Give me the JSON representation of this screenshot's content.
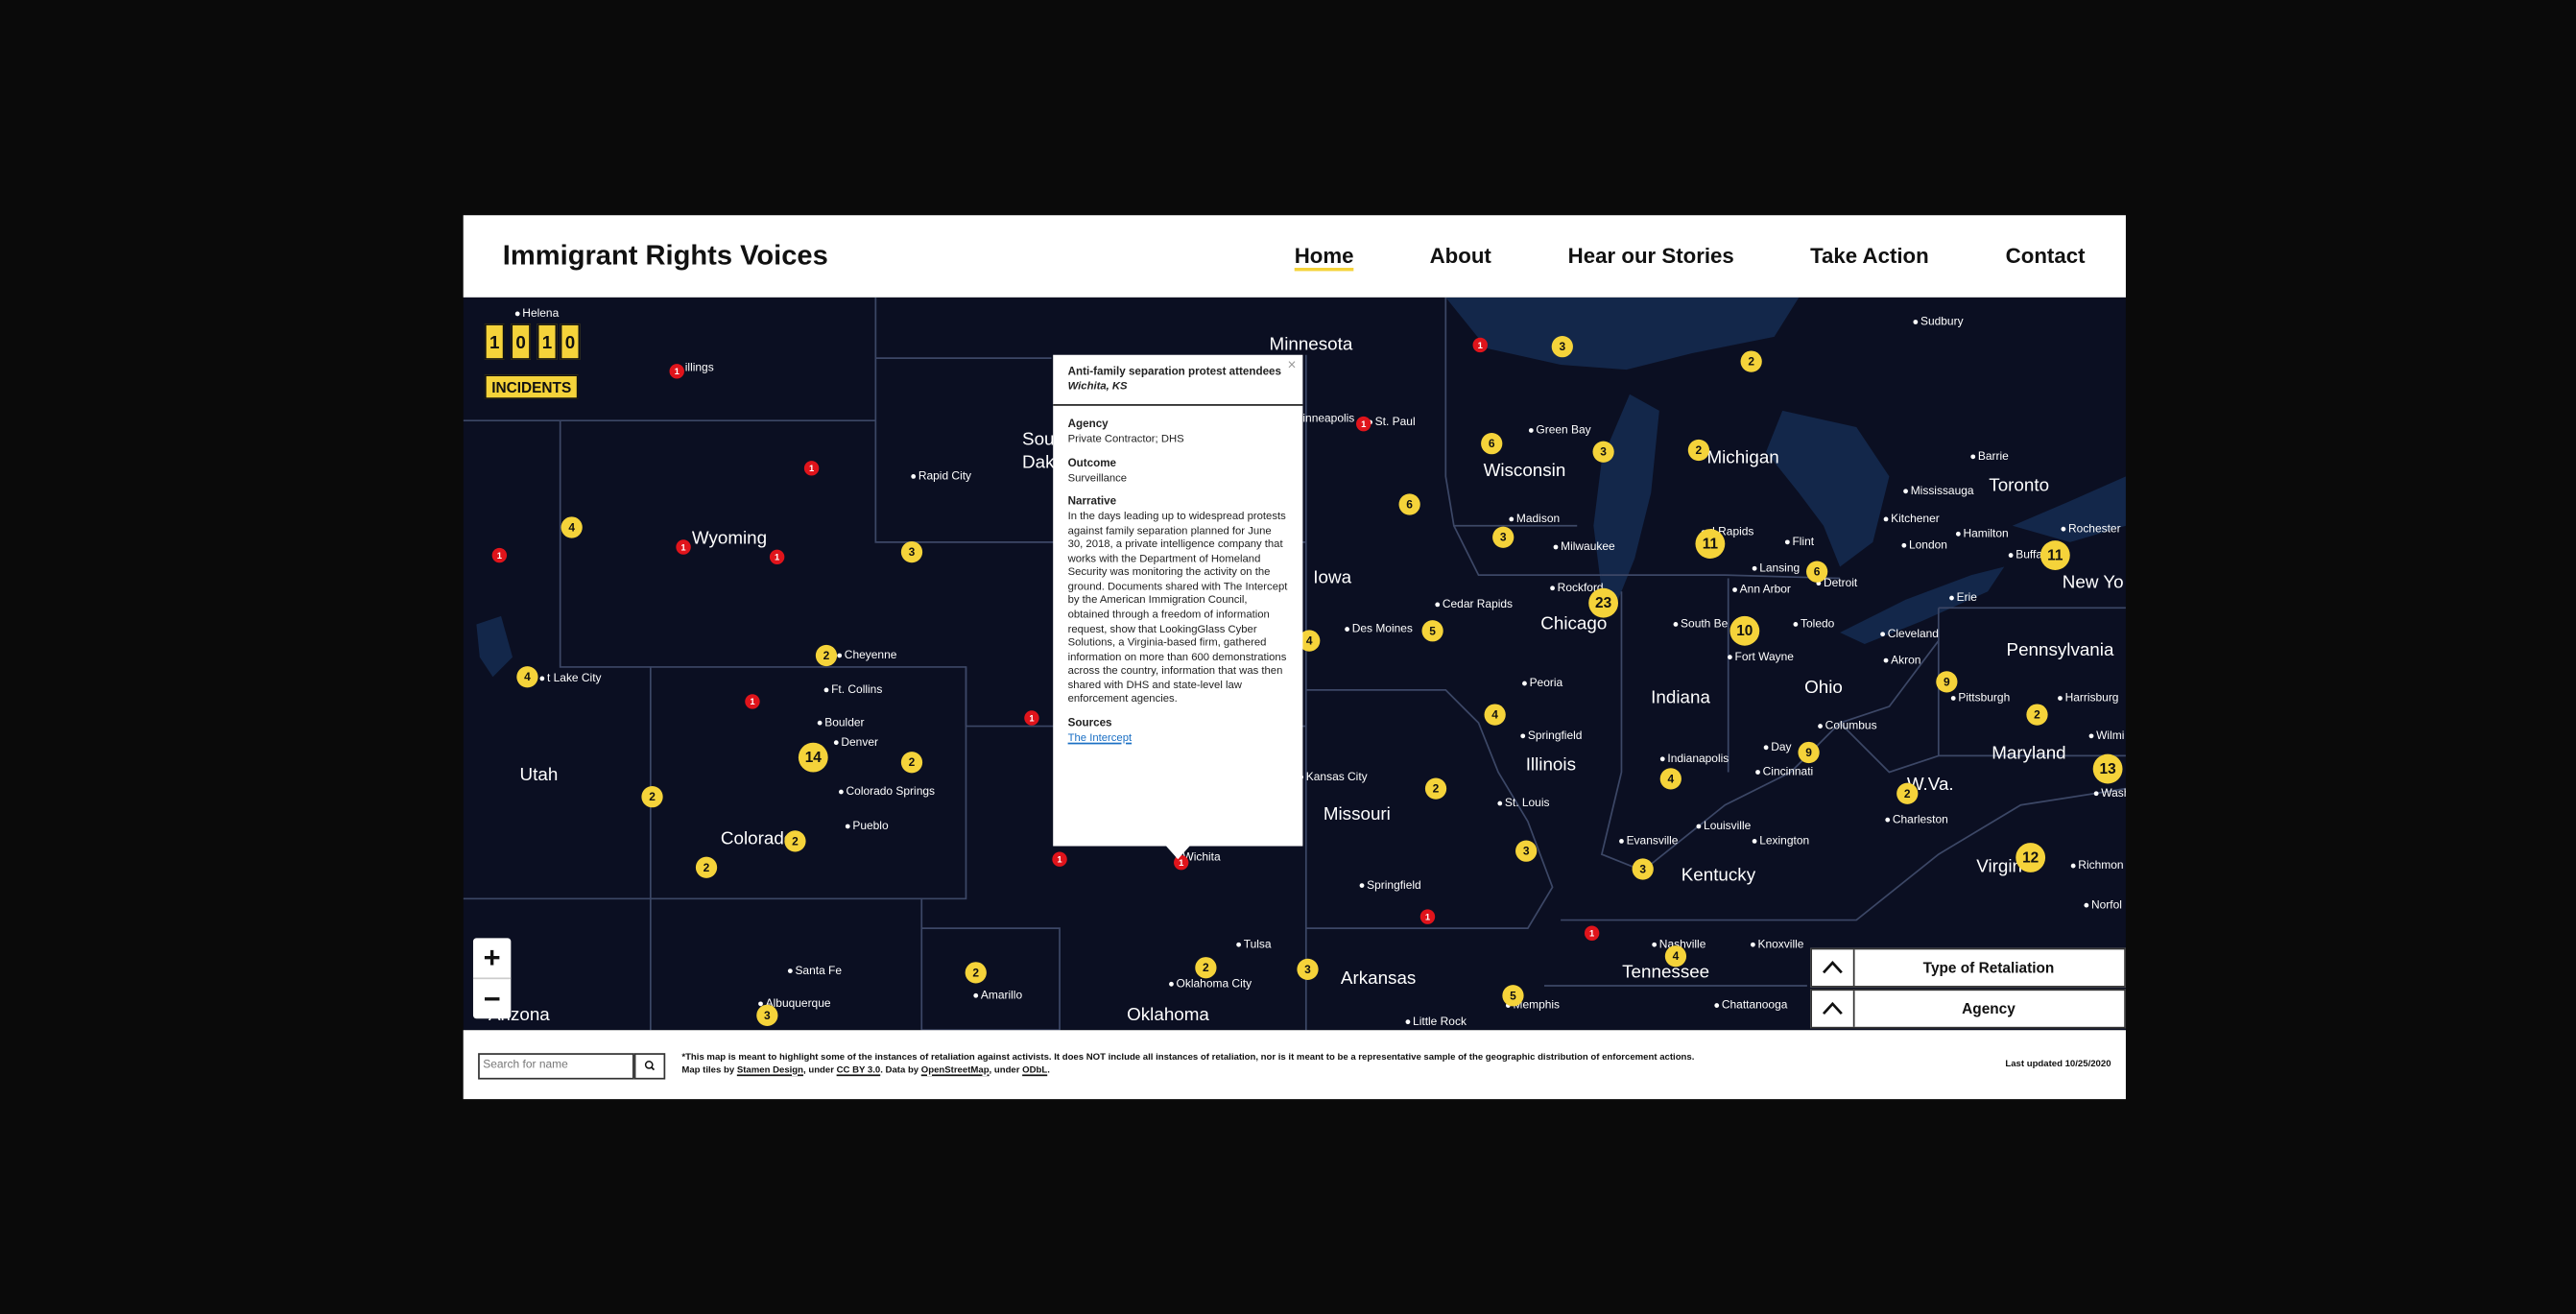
{
  "header": {
    "title": "Immigrant Rights Voices",
    "nav": [
      "Home",
      "About",
      "Hear our Stories",
      "Take Action",
      "Contact"
    ]
  },
  "counter": {
    "digits": [
      "1",
      "0",
      "1",
      "0"
    ],
    "label": "INCIDENTS"
  },
  "map": {
    "state_labels": [
      "Minnesota",
      "Sou",
      "Dak",
      "Wyoming",
      "Iowa",
      "Wisconsin",
      "Michigan",
      "Toronto",
      "New Yo",
      "Chicago",
      "Indiana",
      "Ohio",
      "Pennsylvania",
      "Illinois",
      "Maryland",
      "W.Va.",
      "Missouri",
      "Kentucky",
      "Virgin",
      "Utah",
      "Colorado",
      "Tennessee",
      "Arkansas",
      "Oklahoma",
      "Arizona"
    ],
    "city_labels": [
      "Helena",
      "illings",
      "Rapid City",
      "Cheyenne",
      "t Lake City",
      "Ft. Collins",
      "Boulder",
      "Denver",
      "Colorado Springs",
      "Pueblo",
      "Santa Fe",
      "Albuquerque",
      "Amarillo",
      "Oklahoma City",
      "Tulsa",
      "Wichita",
      "Kansas City",
      "Des Moines",
      "Springfield",
      "St. Louis",
      "Little Rock",
      "Cedar Rapids",
      "Rockford",
      "Madison",
      "Milwaukee",
      "Green Bay",
      "St. Paul",
      "inneapolis",
      "Peoria",
      "Springfield",
      "Indianapolis",
      "Evansville",
      "Louisville",
      "Lexington",
      "Cincinnati",
      "Day",
      "Columbus",
      "Fort Wayne",
      "Toledo",
      "South Be",
      "Lansing",
      "Ann Arbor",
      "Detroit",
      "Flint",
      "d Rapids",
      "Cleveland",
      "Akron",
      "Pittsburgh",
      "Harrisburg",
      "Charleston",
      "Nashville",
      "Knoxville",
      "Chattanooga",
      "Memphis",
      "Richmon",
      "Norfol",
      "Erie",
      "Buffa",
      "Rochester",
      "Hamilton",
      "Kitchener",
      "London",
      "Mississauga",
      "Barrie",
      "Sudbury",
      "Wilmi",
      "Wash"
    ],
    "clusters": [
      "3",
      "2",
      "6",
      "3",
      "2",
      "6",
      "3",
      "11",
      "6",
      "11",
      "23",
      "10",
      "9",
      "2",
      "4",
      "9",
      "5",
      "4",
      "2",
      "3",
      "3",
      "4",
      "4",
      "2",
      "12",
      "13",
      "5",
      "4",
      "3",
      "4",
      "2",
      "14",
      "2",
      "2",
      "2",
      "2",
      "2",
      "2",
      "3",
      "3"
    ],
    "incidents": [
      "1",
      "1",
      "1",
      "1",
      "1",
      "1",
      "1",
      "1",
      "1",
      "1",
      "1",
      "1",
      "1"
    ]
  },
  "popup": {
    "close": "×",
    "title": "Anti-family separation protest attendees",
    "location": "Wichita, KS",
    "agency_label": "Agency",
    "agency": "Private Contractor; DHS",
    "outcome_label": "Outcome",
    "outcome": "Surveillance",
    "narrative_label": "Narrative",
    "narrative": "In the days leading up to widespread protests against family separation planned for June 30, 2018, a private intelligence company that works with the Department of Homeland Security was monitoring the activity on the ground. Documents shared with The Intercept by the American Immigration Council, obtained through a freedom of information request, show that LookingGlass Cyber Solutions, a Virginia-based firm, gathered information on more than 600 demonstrations across the country, information that was then shared with DHS and state-level law enforcement agencies.",
    "sources_label": "Sources",
    "source": "The Intercept"
  },
  "zoom": [
    "+",
    "−"
  ],
  "filters": [
    "Type of Retaliation",
    "Agency"
  ],
  "footer": {
    "search_placeholder": "Search for name",
    "note": [
      "*This map is meant to highlight some of the instances of retaliation against activists. It does NOT include all instances of retaliation, nor is it meant to be a representative sample of the geographic distribution of enforcement actions. Map tiles by ",
      "Stamen Design",
      ", under ",
      "CC BY 3.0",
      ". Data by ",
      "OpenStreetMap",
      ", under ",
      "ODbL",
      "."
    ],
    "last_updated": "Last updated 10/25/2020"
  }
}
